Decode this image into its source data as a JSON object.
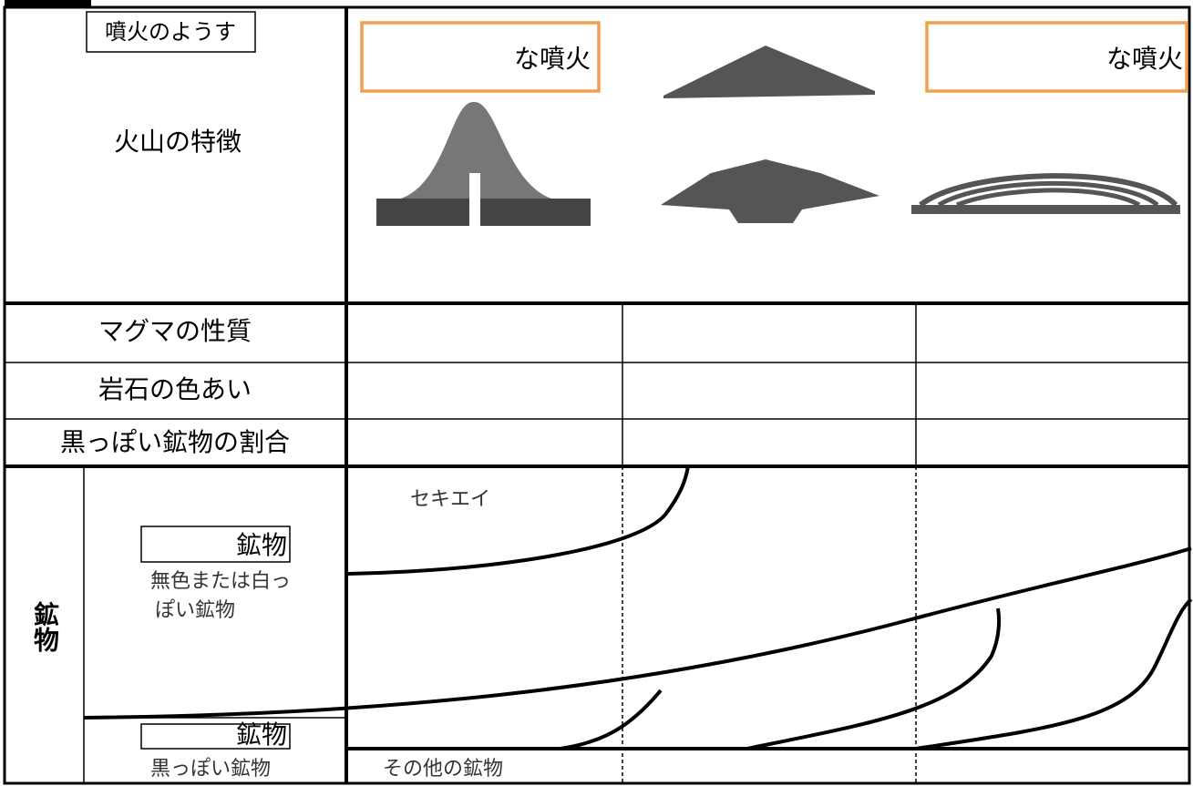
{
  "header": {
    "eruption_label": "噴火のようす",
    "feature_label": "火山の特徴",
    "eruption_boxes": [
      "な噴火",
      "な噴火"
    ]
  },
  "rows": [
    {
      "label": "マグマの性質"
    },
    {
      "label": "岩石の色あい"
    },
    {
      "label": "黒っぽい鉱物の割合"
    }
  ],
  "minerals": {
    "side_label": "鉱物",
    "light_box": "鉱物",
    "light_desc": [
      "無色または白っ",
      "ぽい鉱物"
    ],
    "quartz": "セキエイ",
    "dark_box": "鉱物",
    "dark_desc": "黒っぽい鉱物",
    "other": "その他の鉱物"
  }
}
